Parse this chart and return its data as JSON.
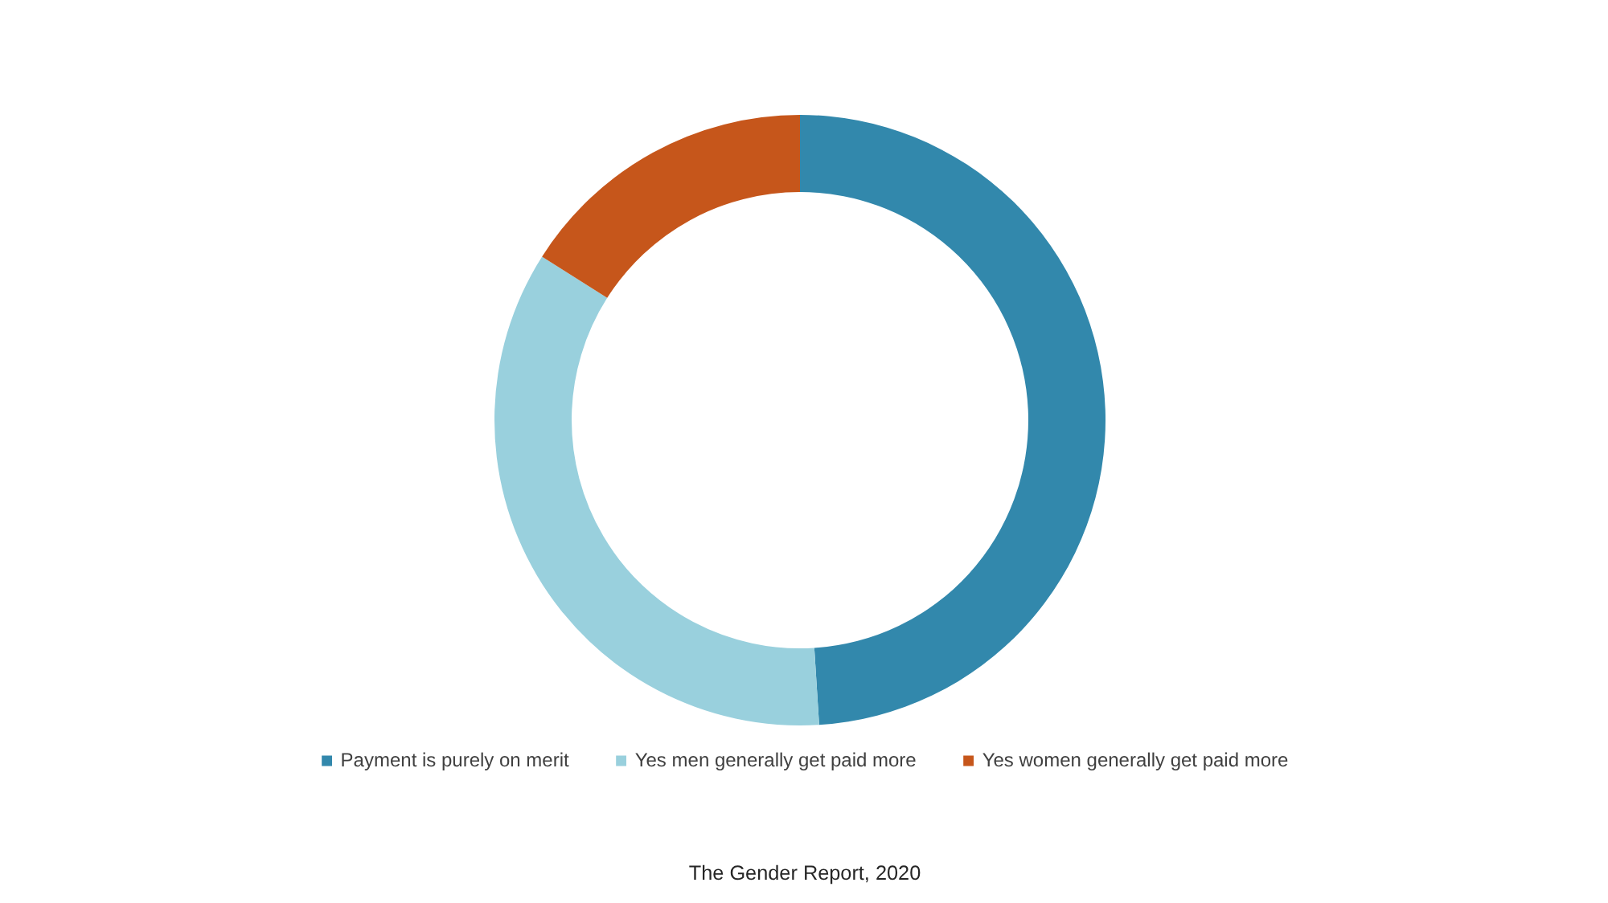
{
  "chart_data": {
    "type": "donut",
    "categories": [
      "Payment is purely on merit",
      "Yes men generally get paid more",
      "Yes women generally get paid more"
    ],
    "values": [
      49,
      35,
      16
    ],
    "colors": [
      "#3288ac",
      "#99d0dd",
      "#c6561b"
    ],
    "legend": "bottom",
    "annotations": [
      "The Gender Report, 2020"
    ]
  }
}
